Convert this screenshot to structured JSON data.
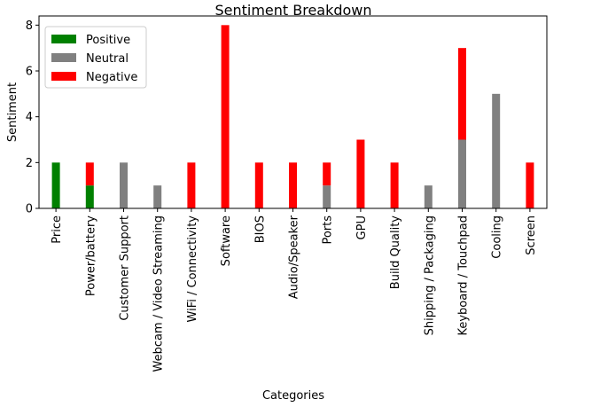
{
  "chart_data": {
    "type": "bar",
    "stacked": true,
    "title": "Sentiment Breakdown",
    "xlabel": "Categories",
    "ylabel": "Sentiment",
    "ylim": [
      0,
      8.4
    ],
    "yticks": [
      0,
      2,
      4,
      6,
      8
    ],
    "legend_position": "top-left",
    "categories": [
      "Price",
      "Power/battery",
      "Customer Support",
      "Webcam / Video Streaming",
      "WiFi / Connectivity",
      "Software",
      "BIOS",
      "Audio/Speaker",
      "Ports",
      "GPU",
      "Build Quality",
      "Shipping / Packaging",
      "Keyboard / Touchpad",
      "Cooling",
      "Screen"
    ],
    "series": [
      {
        "name": "Positive",
        "color": "#008000",
        "values": [
          2,
          1,
          0,
          0,
          0,
          0,
          0,
          0,
          0,
          0,
          0,
          0,
          0,
          0,
          0
        ]
      },
      {
        "name": "Neutral",
        "color": "#808080",
        "values": [
          0,
          0,
          2,
          1,
          0,
          0,
          0,
          0,
          1,
          0,
          0,
          1,
          3,
          5,
          0
        ]
      },
      {
        "name": "Negative",
        "color": "#ff0000",
        "values": [
          0,
          1,
          0,
          0,
          2,
          8,
          2,
          2,
          1,
          3,
          2,
          0,
          4,
          0,
          2
        ]
      }
    ]
  }
}
